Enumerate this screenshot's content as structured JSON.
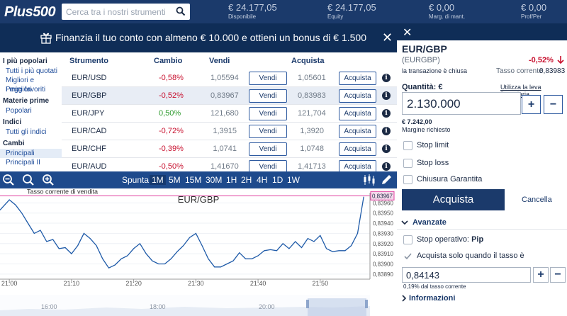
{
  "topbar": {
    "logo": "Plus500",
    "search_placeholder": "Cerca tra i nostri strumenti",
    "stats": [
      {
        "value": "€ 24.177,05",
        "label": "Disponibile"
      },
      {
        "value": "€ 24.177,05",
        "label": "Equity"
      },
      {
        "value": "€ 0,00",
        "label": "Marg. di mant."
      },
      {
        "value": "€ 0,00",
        "label": "Prof/Per"
      }
    ]
  },
  "banner": {
    "text": "Finanzia il tuo conto con almeno € 10.000 e ottieni un bonus di € 1.500",
    "close": "✕"
  },
  "sidebar": {
    "sections": [
      {
        "title": "I più popolari",
        "items": [
          "Tutti i più quotati",
          "Migliori e Peggiori",
          "I miei favoriti"
        ]
      },
      {
        "title": "Materie prime",
        "items": [
          "Popolari"
        ]
      },
      {
        "title": "Indici",
        "items": [
          "Tutti gli indici"
        ]
      },
      {
        "title": "Cambi",
        "items": [
          "Principali",
          "Principali II"
        ]
      }
    ]
  },
  "table": {
    "headers": {
      "instrument": "Strumento",
      "change": "Cambio",
      "sell": "Vendi",
      "buy": "Acquista"
    },
    "sell_btn": "Vendi",
    "buy_btn": "Acquista",
    "info": "i",
    "rows": [
      {
        "sym": "EUR/USD",
        "chg": "-0,58%",
        "sell": "1,05594",
        "buy": "1,05601"
      },
      {
        "sym": "EUR/GBP",
        "chg": "-0,52%",
        "sell": "0,83967",
        "buy": "0,83983"
      },
      {
        "sym": "EUR/JPY",
        "chg": "0,50%",
        "sell": "121,680",
        "buy": "121,704"
      },
      {
        "sym": "EUR/CAD",
        "chg": "-0,72%",
        "sell": "1,3915",
        "buy": "1,3920"
      },
      {
        "sym": "EUR/CHF",
        "chg": "-0,39%",
        "sell": "1,0741",
        "buy": "1,0748"
      },
      {
        "sym": "EUR/AUD",
        "chg": "-0,50%",
        "sell": "1,41670",
        "buy": "1,41713"
      }
    ]
  },
  "chart_toolbar": {
    "timeframes": [
      "Spunta",
      "1M",
      "5M",
      "15M",
      "30M",
      "1H",
      "2H",
      "4H",
      "1D",
      "1W"
    ],
    "active": "1M"
  },
  "chart_data": {
    "type": "line",
    "title": "EUR/GBP",
    "annotation": "Tasso corrente di vendita",
    "current_value_label": "0,83967",
    "current_value": 0.83967,
    "ylim": [
      0.83885,
      0.8397
    ],
    "y_ticks": [
      "0,83960",
      "0,83950",
      "0,83940",
      "0,83930",
      "0,83920",
      "0,83910",
      "0,83900",
      "0,83890"
    ],
    "y_tick_values": [
      0.8396,
      0.8395,
      0.8394,
      0.8393,
      0.8392,
      0.8391,
      0.839,
      0.8389
    ],
    "x_ticks": [
      "21:00",
      "21:10",
      "21:20",
      "21:30",
      "21:40",
      "21:50"
    ],
    "x_tick_minutes": [
      0,
      10,
      20,
      30,
      40,
      50
    ],
    "xlim": [
      -1.5,
      58
    ],
    "values": [
      [
        -1.5,
        0.83953
      ],
      [
        0,
        0.83963
      ],
      [
        1,
        0.83958
      ],
      [
        2,
        0.8395
      ],
      [
        3,
        0.8394
      ],
      [
        4,
        0.8393
      ],
      [
        5,
        0.83933
      ],
      [
        6,
        0.83922
      ],
      [
        7,
        0.83924
      ],
      [
        8,
        0.83915
      ],
      [
        9,
        0.83916
      ],
      [
        10,
        0.8391
      ],
      [
        11,
        0.83918
      ],
      [
        12,
        0.8393
      ],
      [
        13,
        0.83925
      ],
      [
        14,
        0.83918
      ],
      [
        15,
        0.83905
      ],
      [
        16,
        0.83896
      ],
      [
        17,
        0.83899
      ],
      [
        18,
        0.83905
      ],
      [
        19,
        0.83908
      ],
      [
        20,
        0.83915
      ],
      [
        21,
        0.8392
      ],
      [
        22,
        0.8391
      ],
      [
        23,
        0.83903
      ],
      [
        24,
        0.839
      ],
      [
        25,
        0.839
      ],
      [
        26,
        0.83905
      ],
      [
        27,
        0.83912
      ],
      [
        28,
        0.83918
      ],
      [
        29,
        0.83926
      ],
      [
        30,
        0.8393
      ],
      [
        31,
        0.83918
      ],
      [
        32,
        0.83905
      ],
      [
        33,
        0.83897
      ],
      [
        34,
        0.83897
      ],
      [
        35,
        0.839
      ],
      [
        36,
        0.83903
      ],
      [
        37,
        0.83911
      ],
      [
        38,
        0.83905
      ],
      [
        39,
        0.83905
      ],
      [
        40,
        0.83908
      ],
      [
        41,
        0.83913
      ],
      [
        42,
        0.83914
      ],
      [
        43,
        0.83913
      ],
      [
        44,
        0.8392
      ],
      [
        45,
        0.83915
      ],
      [
        46,
        0.83922
      ],
      [
        47,
        0.83916
      ],
      [
        48,
        0.83925
      ],
      [
        49,
        0.83922
      ],
      [
        50,
        0.83928
      ],
      [
        51,
        0.83915
      ],
      [
        52,
        0.83912
      ],
      [
        53,
        0.83913
      ],
      [
        54,
        0.83913
      ],
      [
        55,
        0.83918
      ],
      [
        56,
        0.8393
      ],
      [
        57,
        0.83966
      ]
    ],
    "navigator_ticks": [
      "16:00",
      "18:00",
      "20:00"
    ],
    "grid": true
  },
  "panel": {
    "close": "✕",
    "pair": "EUR/GBP",
    "code": "(EURGBP)",
    "change": "-0,52%",
    "status": "la transazione è chiusa",
    "rate_label": "Tasso corrente",
    "rate": "0,83983",
    "qty_label": "Quantità: €",
    "leverage_link": "Utilizza la leva finanziaria",
    "qty_value": "2.130.000",
    "plus": "+",
    "minus": "−",
    "margin_value": "€ 7.242,00",
    "margin_label": "Margine richiesto",
    "stop_limit": "Stop limit",
    "stop_loss": "Stop loss",
    "guaranteed": "Chiusura Garantita",
    "buy_btn": "Acquista",
    "cancel_btn": "Cancella",
    "advanced": "Avanzate",
    "stop_op": "Stop operativo: ",
    "stop_op_unit": "Pip",
    "buy_when": "Acquista solo quando il tasso è",
    "rate_value": "0,84143",
    "rate_note": "0,19%  dal tasso corrente",
    "info_section": "Informazioni"
  }
}
